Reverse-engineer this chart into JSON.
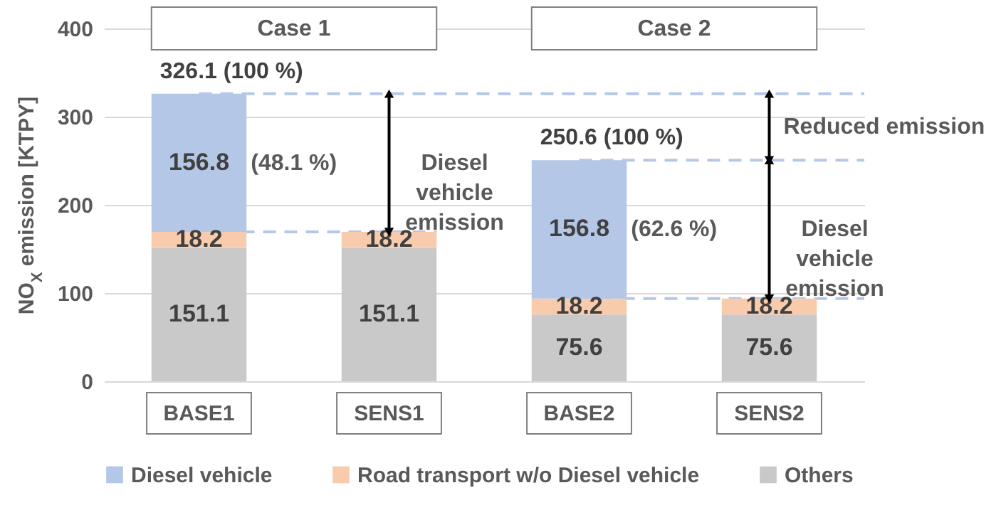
{
  "chart_data": {
    "type": "bar",
    "stacked": true,
    "ylabel": "NO$_{X}$ emission [KTPY]",
    "categories": [
      "BASE1",
      "SENS1",
      "BASE2",
      "SENS2"
    ],
    "series": [
      {
        "name": "Others",
        "color": "#c9c9c9",
        "values": [
          151.1,
          151.1,
          75.6,
          75.6
        ]
      },
      {
        "name": "Road transport w/o Diesel vehicle",
        "color": "#f8cbad",
        "values": [
          18.2,
          18.2,
          18.2,
          18.2
        ]
      },
      {
        "name": "Diesel vehicle",
        "color": "#b4c7e7",
        "values": [
          156.8,
          null,
          156.8,
          null
        ]
      }
    ],
    "totals": [
      "326.1 (100 %)",
      null,
      "250.6 (100 %)",
      null
    ],
    "data_labels": true,
    "ylim": [
      0,
      400
    ],
    "yticks": [
      0,
      100,
      200,
      300,
      400
    ],
    "grid": "y",
    "legend": "bottom",
    "ref_lines": [
      {
        "axis": "y",
        "value": 326.1,
        "color": "#b4c7e7",
        "line_style": "dashed"
      },
      {
        "axis": "y",
        "value": 169.3,
        "color": "#b4c7e7",
        "line_style": "dashed"
      },
      {
        "axis": "y",
        "value": 250.6,
        "color": "#b4c7e7",
        "line_style": "dashed"
      },
      {
        "axis": "y",
        "value": 93.8,
        "color": "#b4c7e7",
        "line_style": "dashed"
      }
    ],
    "annotations": [
      "Case 1",
      "Case 2",
      "(48.1 %)",
      "(62.6 %)",
      {
        "text": "Diesel\nvehicle\nemission",
        "x": "SENS1",
        "y": 169.3
      },
      {
        "text": "Reduced emission",
        "x": "SENS2",
        "y": 250.6
      },
      {
        "text": "Diesel\nvehicle\nemission",
        "x": "SENS2",
        "y": 93.8
      }
    ]
  }
}
